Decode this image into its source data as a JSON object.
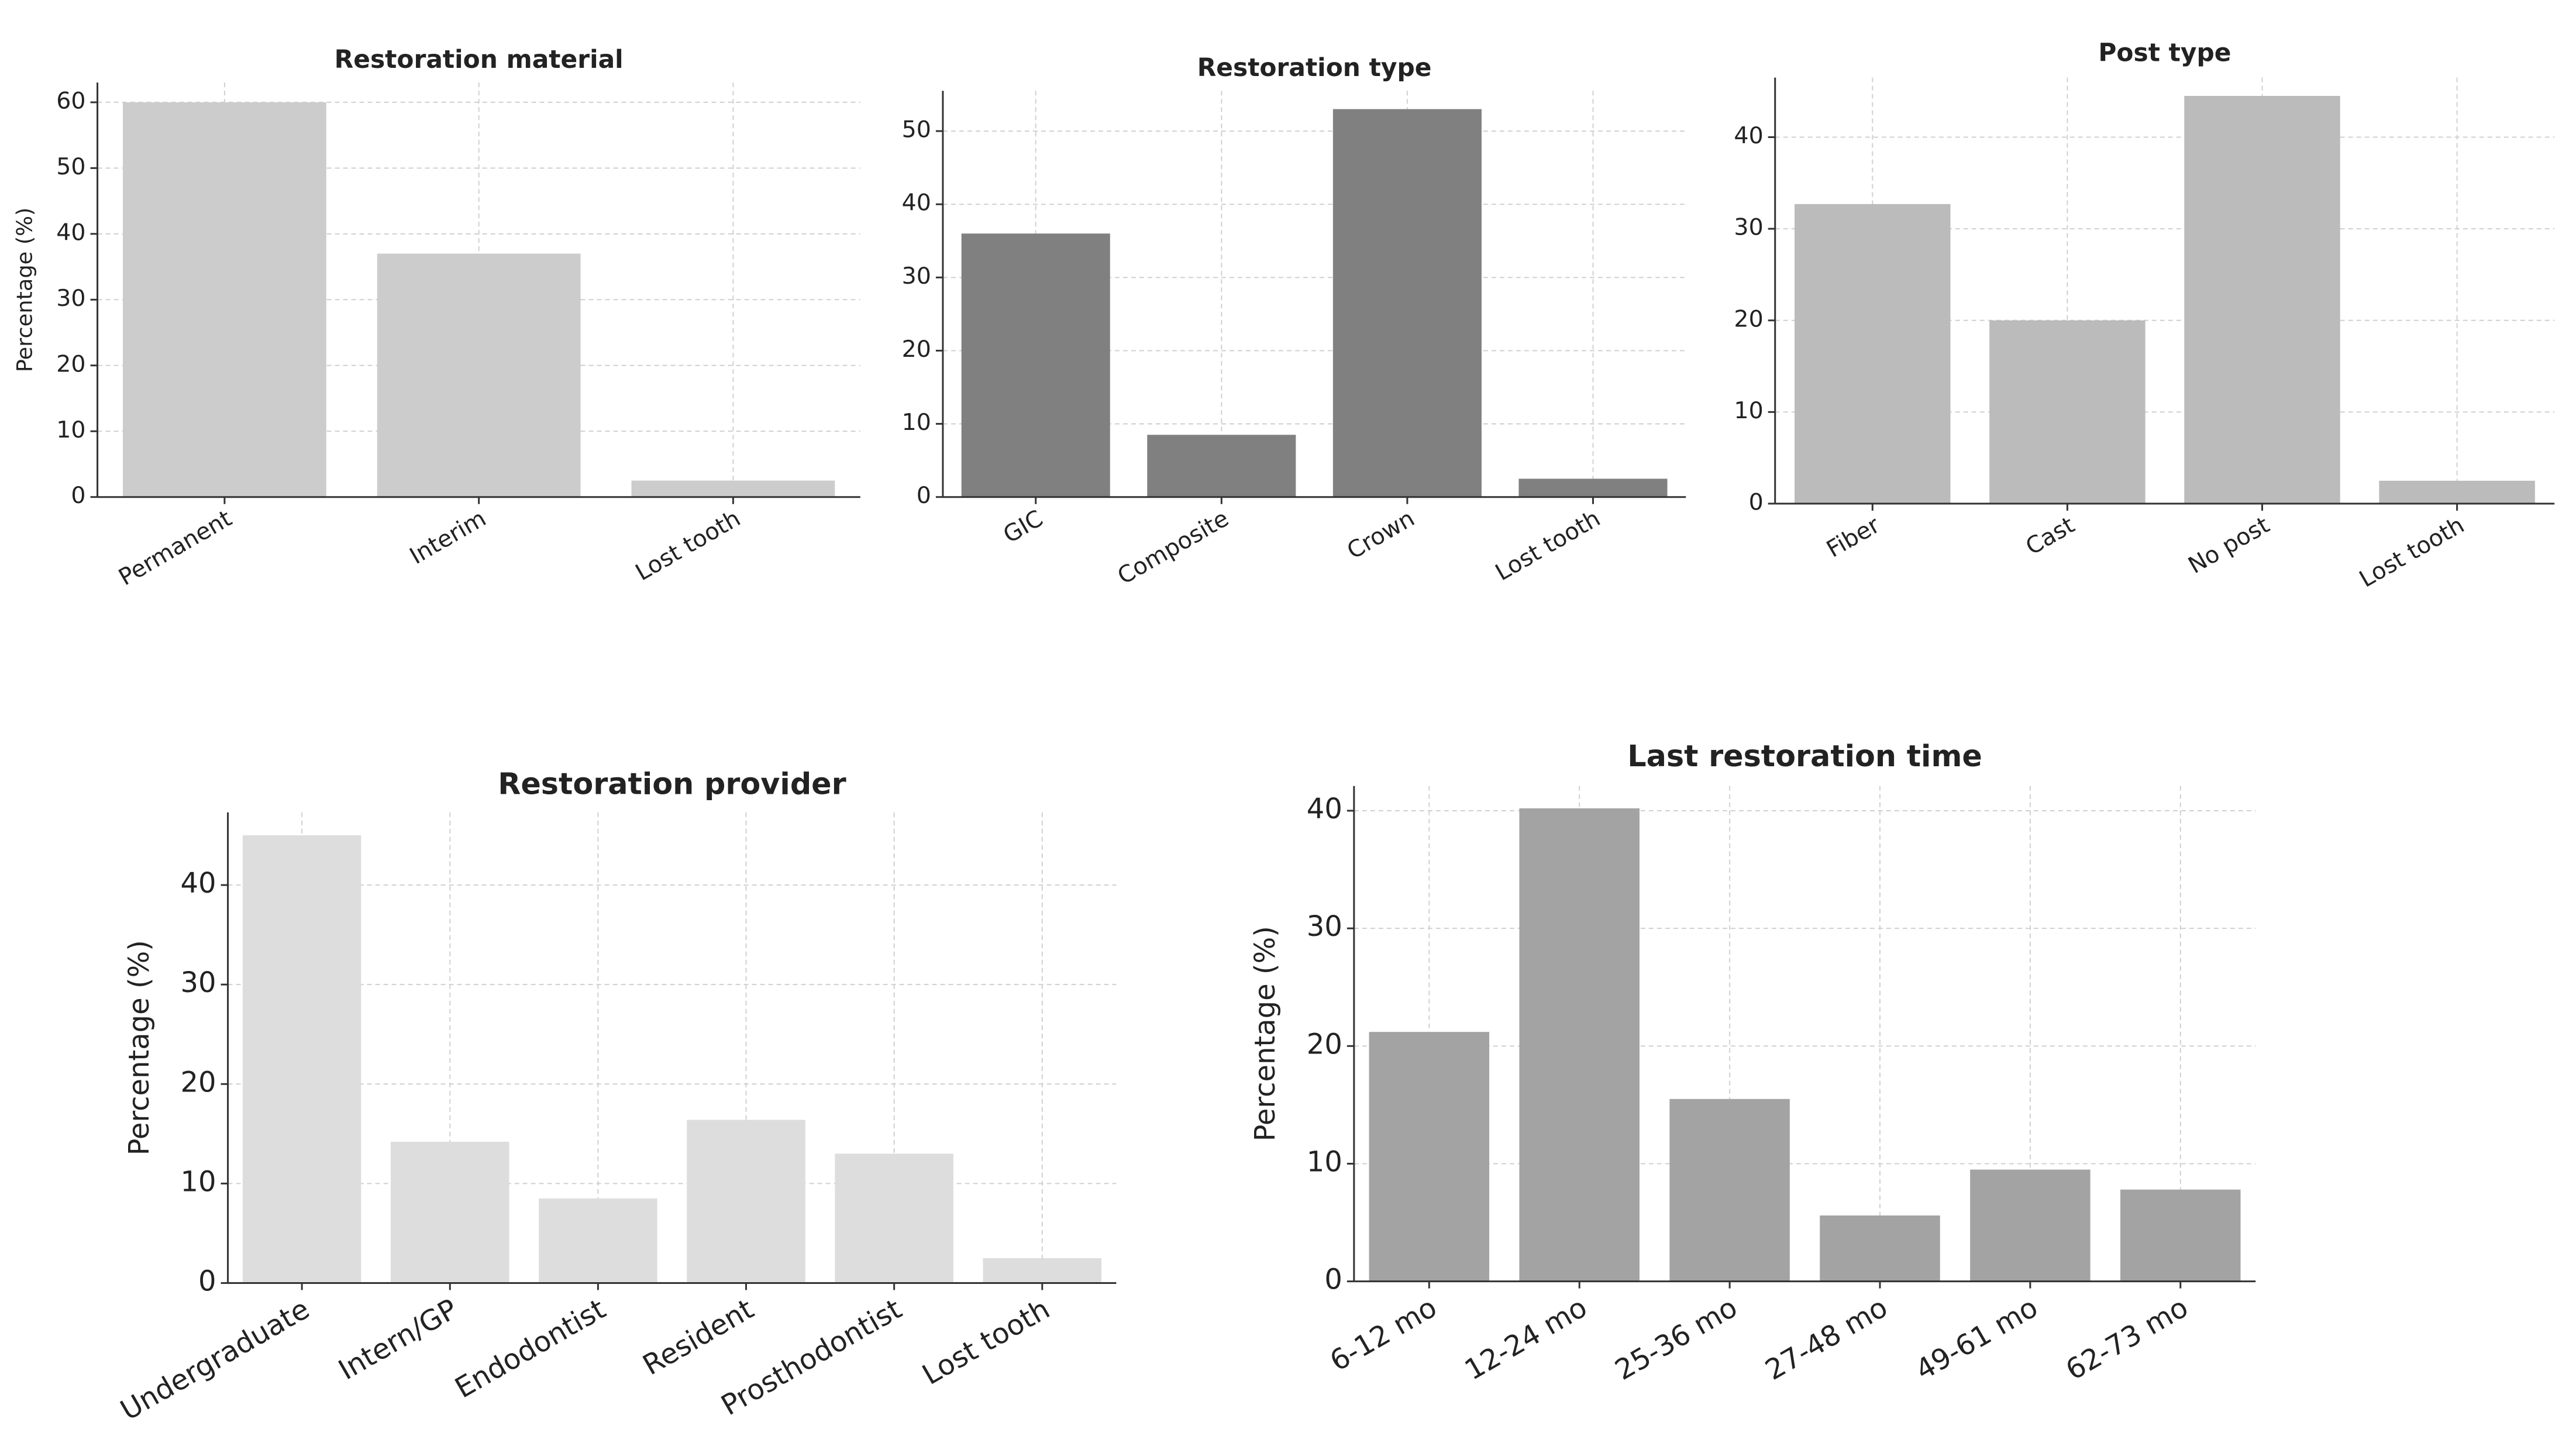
{
  "chart_data": [
    {
      "type": "bar",
      "title": "Restoration material",
      "y_label": "Percentage (%)",
      "categories": [
        "Permanent",
        "Interim",
        "Lost tooth"
      ],
      "values": [
        60,
        37,
        2.5
      ],
      "color": "#cccccc",
      "ylim": [
        0,
        63
      ],
      "yticks": [
        0,
        10,
        20,
        30,
        40,
        50,
        60
      ],
      "grid": true
    },
    {
      "type": "bar",
      "title": "Restoration type",
      "categories": [
        "GIC",
        "Composite",
        "Crown",
        "Lost tooth"
      ],
      "values": [
        36,
        8.5,
        53,
        2.5
      ],
      "color": "#808080",
      "ylim": [
        0,
        55.5
      ],
      "yticks": [
        0,
        10,
        20,
        30,
        40,
        50
      ],
      "grid": true
    },
    {
      "type": "bar",
      "title": "Post type",
      "categories": [
        "Fiber",
        "Cast",
        "No post",
        "Lost tooth"
      ],
      "values": [
        32.7,
        20,
        44.5,
        2.5
      ],
      "color": "#bbbbbb",
      "ylim": [
        0,
        46.5
      ],
      "yticks": [
        0,
        10,
        20,
        30,
        40
      ],
      "grid": true
    },
    {
      "type": "bar",
      "title": "Restoration provider",
      "y_label": "Percentage (%)",
      "categories": [
        "Undergraduate",
        "Intern/GP",
        "Endodontist",
        "Resident",
        "Prosthodontist",
        "Lost tooth"
      ],
      "values": [
        45,
        14.2,
        8.5,
        16.4,
        13,
        2.5
      ],
      "color": "#dddddd",
      "ylim": [
        0,
        47.3
      ],
      "yticks": [
        0,
        10,
        20,
        30,
        40
      ],
      "grid": true
    },
    {
      "type": "bar",
      "title": "Last restoration time",
      "y_label": "Percentage (%)",
      "categories": [
        "6-12 mo",
        "12-24 mo",
        "25-36 mo",
        "27-48 mo",
        "49-61 mo",
        "62-73 mo"
      ],
      "values": [
        21.2,
        40.2,
        15.5,
        5.6,
        9.5,
        7.8
      ],
      "color": "#a3a3a3",
      "ylim": [
        0,
        42.1
      ],
      "yticks": [
        0,
        10,
        20,
        30,
        40
      ],
      "grid": true
    }
  ]
}
